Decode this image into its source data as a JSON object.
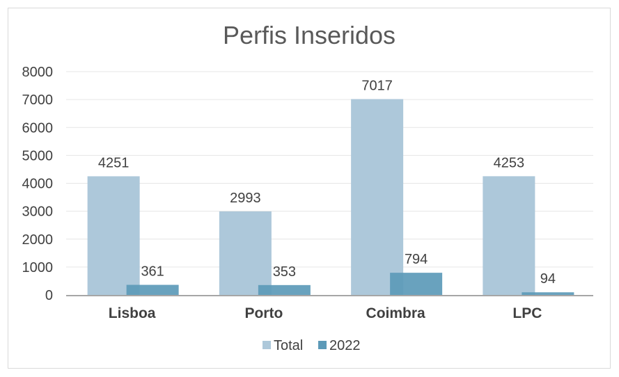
{
  "chart_data": {
    "type": "bar",
    "title": "Perfis Inseridos",
    "categories": [
      "Lisboa",
      "Porto",
      "Coimbra",
      "LPC"
    ],
    "series": [
      {
        "name": "Total",
        "values": [
          4251,
          2993,
          7017,
          4253
        ],
        "color": "#adc8da"
      },
      {
        "name": "2022",
        "values": [
          361,
          353,
          794,
          94
        ],
        "color": "#5c9ab8"
      }
    ],
    "ylim": [
      0,
      8000
    ],
    "yticks": [
      0,
      1000,
      2000,
      3000,
      4000,
      5000,
      6000,
      7000,
      8000
    ],
    "grid": true,
    "legend_position": "bottom"
  }
}
